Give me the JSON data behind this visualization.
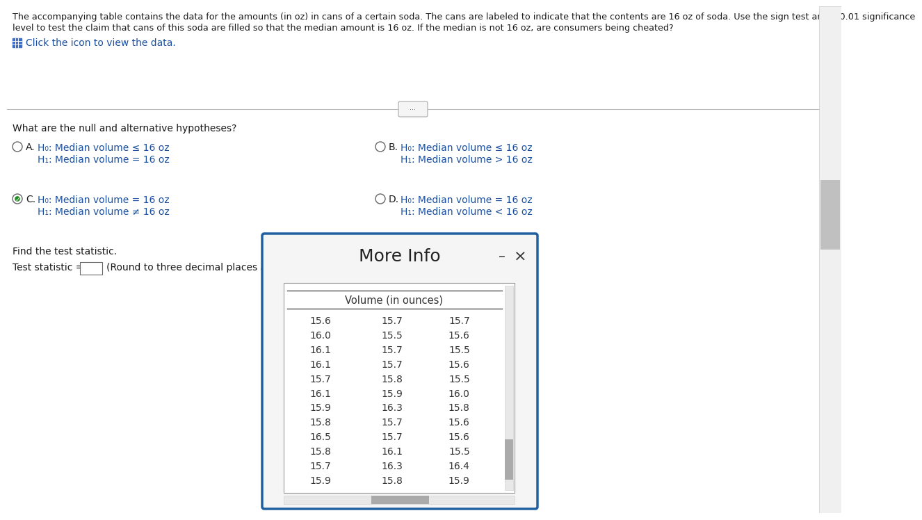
{
  "title_line1": "The accompanying table contains the data for the amounts (in oz) in cans of a certain soda. The cans are labeled to indicate that the contents are 16 oz of soda. Use the sign test and a 0.01 significance",
  "title_line2": "level to test the claim that cans of this soda are filled so that the median amount is 16 oz. If the median is not 16 oz, are consumers being cheated?",
  "click_text": "Click the icon to view the data.",
  "hypotheses_label": "What are the null and alternative hypotheses?",
  "opt_A_h0": "H₀: Median volume ≤ 16 oz",
  "opt_A_h1": "H₁: Median volume = 16 oz",
  "opt_B_h0": "H₀: Median volume ≤ 16 oz",
  "opt_B_h1": "H₁: Median volume > 16 oz",
  "opt_C_h0": "H₀: Median volume = 16 oz",
  "opt_C_h1": "H₁: Median volume ≠ 16 oz",
  "opt_D_h0": "H₀: Median volume = 16 oz",
  "opt_D_h1": "H₁: Median volume < 16 oz",
  "find_stat_text": "Find the test statistic.",
  "test_stat_label": "Test statistic =",
  "round_text": "(Round to three decimal places as needed.)",
  "more_info_title": "More Info",
  "table_header": "Volume (in ounces)",
  "table_data": [
    [
      "15.6",
      "15.7",
      "15.7"
    ],
    [
      "16.0",
      "15.5",
      "15.6"
    ],
    [
      "16.1",
      "15.7",
      "15.5"
    ],
    [
      "16.1",
      "15.7",
      "15.6"
    ],
    [
      "15.7",
      "15.8",
      "15.5"
    ],
    [
      "16.1",
      "15.9",
      "16.0"
    ],
    [
      "15.9",
      "16.3",
      "15.8"
    ],
    [
      "15.8",
      "15.7",
      "15.6"
    ],
    [
      "16.5",
      "15.7",
      "15.6"
    ],
    [
      "15.8",
      "16.1",
      "15.5"
    ],
    [
      "15.7",
      "16.3",
      "16.4"
    ],
    [
      "15.9",
      "15.8",
      "15.9"
    ]
  ],
  "bg_color": "#ffffff",
  "text_color": "#1a1a1a",
  "blue_link_color": "#1a4fa0",
  "option_color": "#1a4fa0",
  "title_fontsize": 9.2,
  "body_fontsize": 10.0,
  "small_fontsize": 9.5,
  "table_fontsize": 10.0,
  "more_info_box_border": "#2060a0",
  "scrollbar_bg": "#e8e8e8",
  "scrollbar_thumb": "#aaaaaa"
}
